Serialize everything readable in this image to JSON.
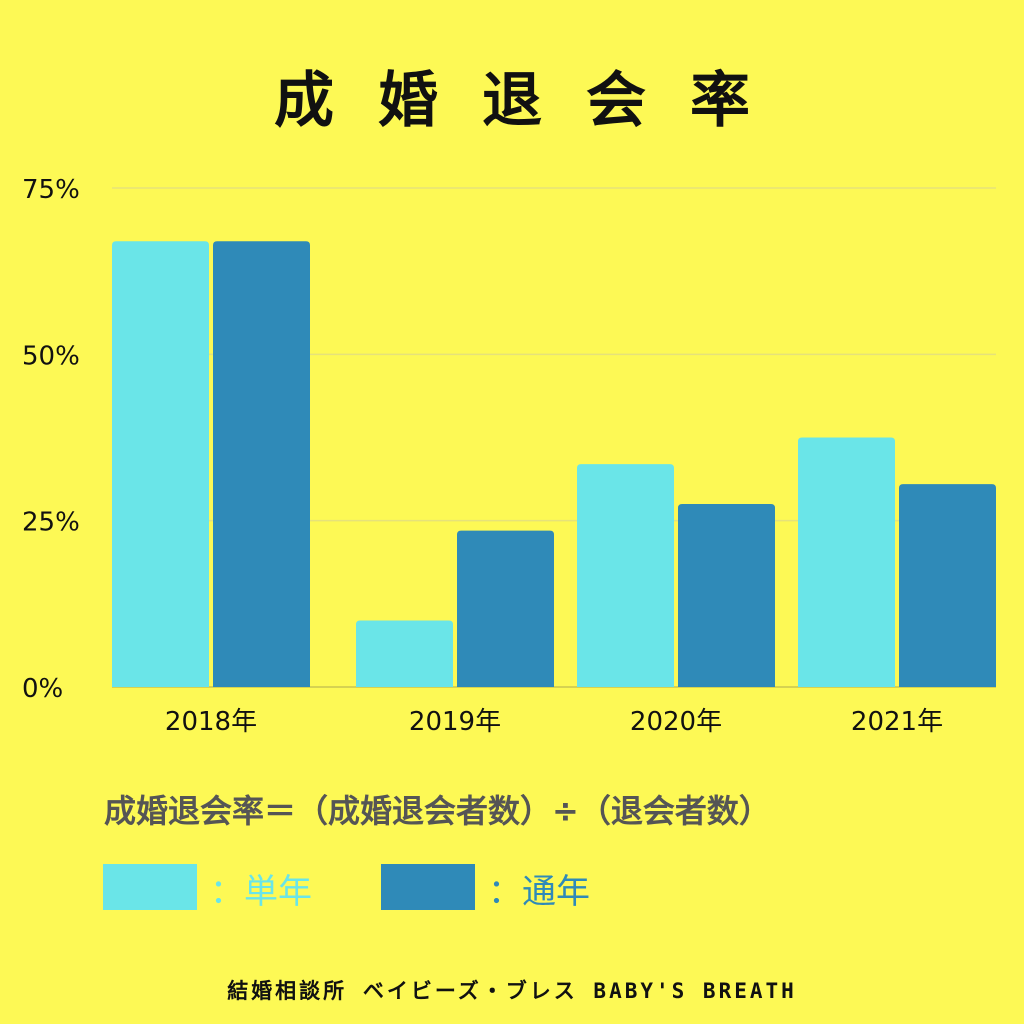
{
  "title": "成婚退会率",
  "formula": "成婚退会率＝（成婚退会者数）÷（退会者数）",
  "footer": "結婚相談所 ベイビーズ・ブレス BABY'S BREATH",
  "colors": {
    "background": "#fdf955",
    "single_year": "#6ae5e8",
    "cumulative": "#2f8ab8",
    "grid": "#e6e27a",
    "axis_text": "#111111"
  },
  "legend": [
    {
      "label": "：単年",
      "series": "single_year"
    },
    {
      "label": "：通年",
      "series": "cumulative"
    }
  ],
  "chart_data": {
    "type": "bar",
    "categories": [
      "2018年",
      "2019年",
      "2020年",
      "2021年"
    ],
    "series": [
      {
        "name": "単年",
        "key": "single_year",
        "values": [
          67,
          10,
          33.5,
          37.5
        ]
      },
      {
        "name": "通年",
        "key": "cumulative",
        "values": [
          67,
          23.5,
          27.5,
          30.5
        ]
      }
    ],
    "yticks": [
      "0%",
      "25%",
      "50%",
      "75%"
    ],
    "ytick_values": [
      0,
      25,
      50,
      75
    ],
    "ylim": [
      0,
      75
    ],
    "grid": true,
    "legend_position": "bottom-left"
  }
}
